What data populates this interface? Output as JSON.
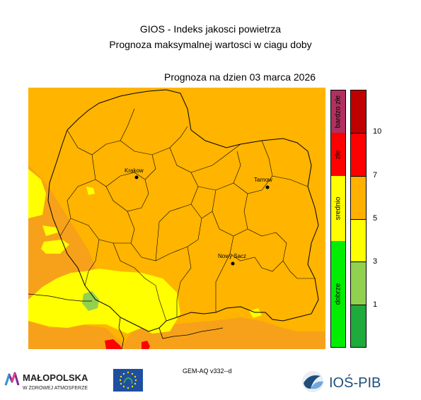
{
  "header": {
    "title_line1": "GIOS - Indeks jakosci powietrza",
    "title_line2": "Prognoza maksymalnej wartosci w ciagu doby",
    "date_line": "Prognoza na dzien  03 marca 2026"
  },
  "map": {
    "cities": [
      {
        "name": "Krakow"
      },
      {
        "name": "Tarnow"
      },
      {
        "name": "Nowy Sacz"
      }
    ],
    "colors": {
      "orange": "#FFB400",
      "dark_orange": "#F7A11A",
      "yellow": "#FFFF00",
      "light_green": "#92D050",
      "red": "#FF0000"
    }
  },
  "legend": {
    "categories": [
      {
        "label": "bardzo złe",
        "color": "#B03060"
      },
      {
        "label": "złe",
        "color": "#FF0000"
      },
      {
        "label": "srednio",
        "color": "#FFFF00"
      },
      {
        "label": "dobrze",
        "color": "#00EE00"
      }
    ],
    "value_bands": [
      "#C00000",
      "#FF0000",
      "#FFB000",
      "#FFFF00",
      "#92D050",
      "#1FAA3C"
    ],
    "ticks": [
      "10",
      "7",
      "5",
      "3",
      "1"
    ]
  },
  "footer": {
    "model_version": "GEM-AQ v332--d",
    "logo_malopolska": "MAŁOPOLSKA",
    "logo_malopolska_sub": "W ZDROWEJ ATMOSFERZE",
    "logo_ios": "IOŚ-PIB"
  }
}
